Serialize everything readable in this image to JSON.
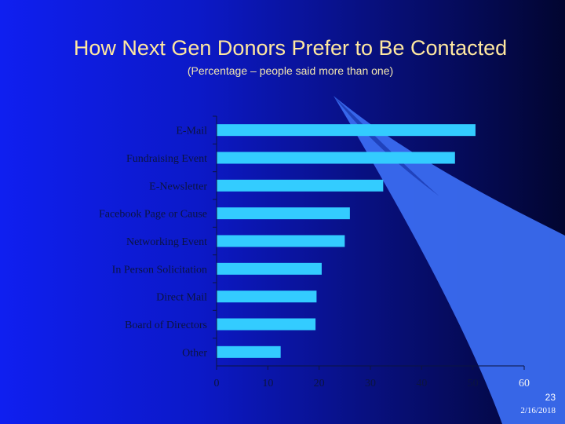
{
  "slide": {
    "title": "How Next Gen Donors Prefer to Be Contacted",
    "subtitle": "(Percentage – people said more than one)",
    "page_number": "23",
    "date": "2/16/2018"
  },
  "colors": {
    "bar": "#33ccff",
    "title": "#ffe8a0",
    "background_left": "#0f1ff0",
    "background_right": "#020530",
    "swoosh": "#3a6cf0"
  },
  "chart_data": {
    "type": "bar",
    "orientation": "horizontal",
    "title": "How Next Gen Donors Prefer to Be Contacted",
    "subtitle": "(Percentage – people said more than one)",
    "categories": [
      "E-Mail",
      "Fundraising Event",
      "E-Newsletter",
      "Facebook Page or Cause",
      "Networking Event",
      "In Person Solicitation",
      "Direct Mail",
      "Board of Directors",
      "Other"
    ],
    "values": [
      50.5,
      46.5,
      32.5,
      26,
      25,
      20.5,
      19.5,
      19.3,
      12.5
    ],
    "ticks": [
      "0",
      "10",
      "20",
      "30",
      "40",
      "50",
      "60"
    ],
    "xlim": [
      0,
      60
    ],
    "grid": false,
    "legend": "none"
  }
}
